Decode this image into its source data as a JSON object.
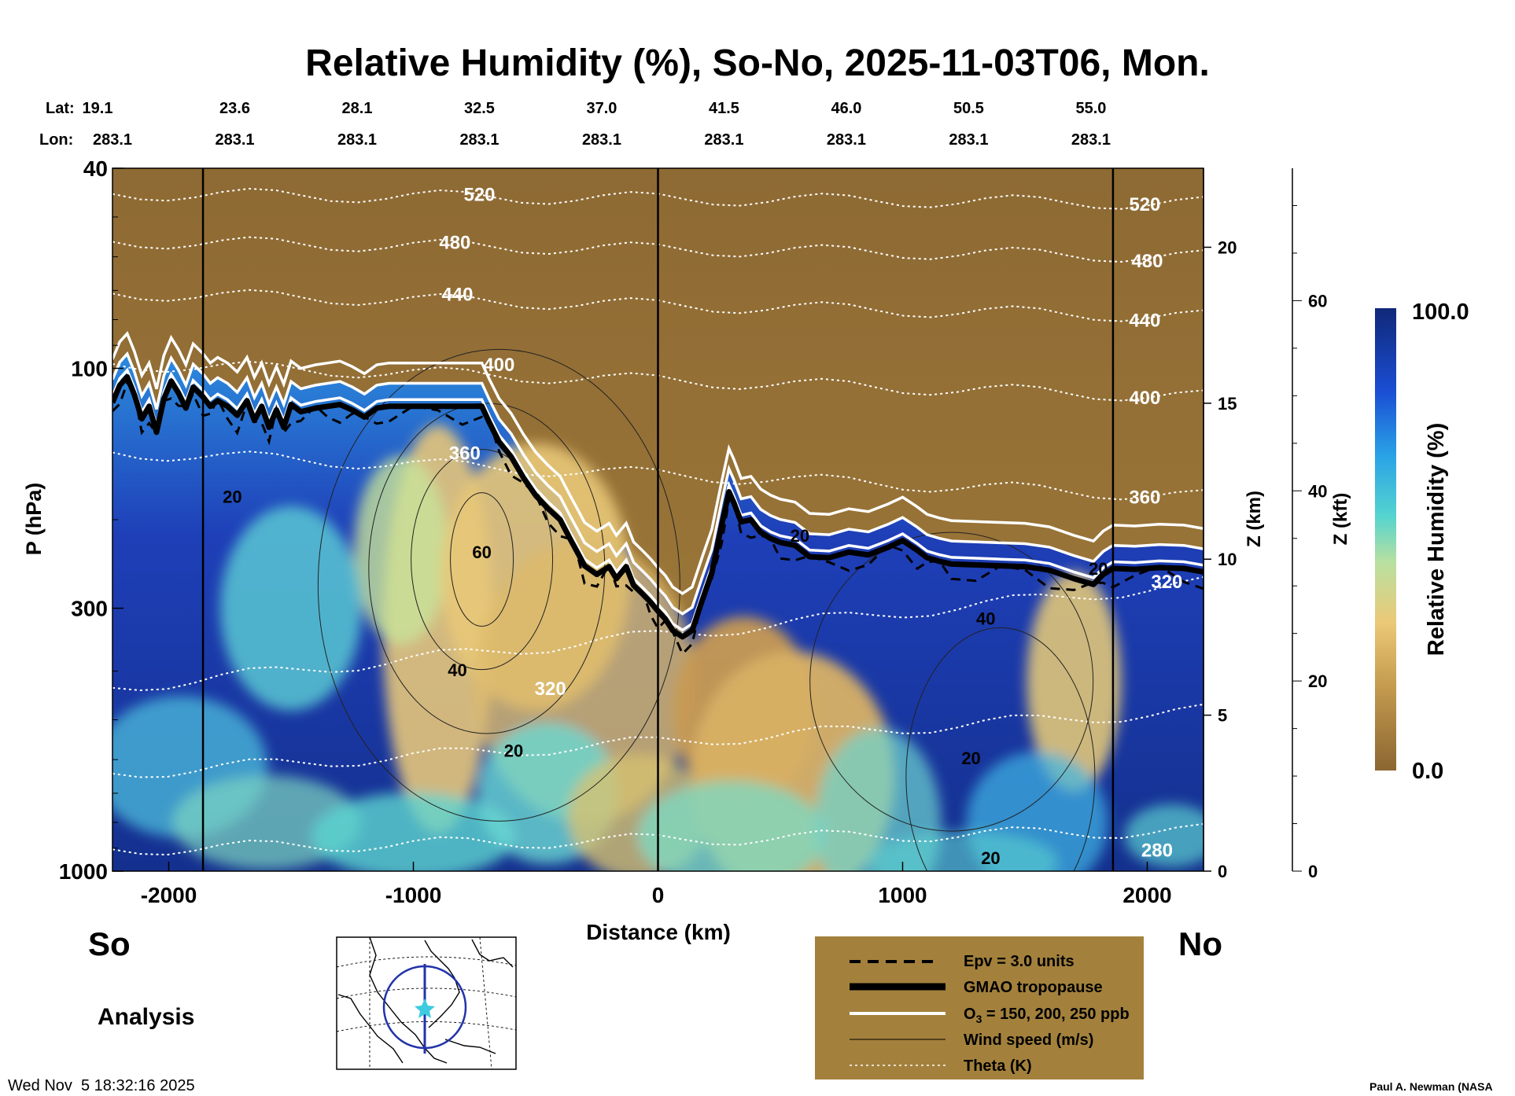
{
  "chart_data": {
    "type": "heatmap",
    "title": "Relative Humidity (%), So-No, 2025-11-03T06, Mon.",
    "xlabel": "Distance (km)",
    "ylabel": "P (hPa)",
    "z_km_label": "Z (km)",
    "z_kft_label": "Z (kft)",
    "colorbar_label": "Relative Humidity (%)",
    "colorbar_max_label": "100.0",
    "colorbar_min_label": "0.0",
    "xlim": [
      -2230,
      2230
    ],
    "ylim": [
      1000,
      40
    ],
    "y_scale": "log",
    "x_ticks": [
      {
        "value": -2000,
        "label": "-2000"
      },
      {
        "value": -1000,
        "label": "-1000"
      },
      {
        "value": 0,
        "label": "0"
      },
      {
        "value": 1000,
        "label": "1000"
      },
      {
        "value": 2000,
        "label": "2000"
      }
    ],
    "y_ticks": [
      {
        "value": 40,
        "label": "40"
      },
      {
        "value": 100,
        "label": "100"
      },
      {
        "value": 300,
        "label": "300"
      },
      {
        "value": 1000,
        "label": "1000"
      }
    ],
    "z_km_ticks": [
      {
        "value": 0,
        "label": "0"
      },
      {
        "value": 5,
        "label": "5"
      },
      {
        "value": 10,
        "label": "10"
      },
      {
        "value": 15,
        "label": "15"
      },
      {
        "value": 20,
        "label": "20"
      }
    ],
    "z_kft_ticks": [
      {
        "value": 0,
        "label": "0"
      },
      {
        "value": 20,
        "label": "20"
      },
      {
        "value": 40,
        "label": "40"
      },
      {
        "value": 60,
        "label": "60"
      }
    ],
    "lat_label": "Lat:",
    "lon_label": "Lon:",
    "position_labels": [
      {
        "distance": -2230,
        "lat": "19.1",
        "lon": "283.1"
      },
      {
        "distance": -1730,
        "lat": "23.6",
        "lon": "283.1"
      },
      {
        "distance": -1230,
        "lat": "28.1",
        "lon": "283.1"
      },
      {
        "distance": -730,
        "lat": "32.5",
        "lon": "283.1"
      },
      {
        "distance": -230,
        "lat": "37.0",
        "lon": "283.1"
      },
      {
        "distance": 270,
        "lat": "41.5",
        "lon": "283.1"
      },
      {
        "distance": 770,
        "lat": "46.0",
        "lon": "283.1"
      },
      {
        "distance": 1270,
        "lat": "50.5",
        "lon": "283.1"
      },
      {
        "distance": 1770,
        "lat": "55.0",
        "lon": "283.1"
      }
    ],
    "vertical_lines_km": [
      -1860,
      0,
      1860
    ],
    "theta_labels": [
      {
        "label": "520",
        "x": -730,
        "p": 45
      },
      {
        "label": "480",
        "x": -830,
        "p": 56
      },
      {
        "label": "440",
        "x": -820,
        "p": 71
      },
      {
        "label": "400",
        "x": -650,
        "p": 98
      },
      {
        "label": "360",
        "x": -790,
        "p": 147
      },
      {
        "label": "320",
        "x": -440,
        "p": 432
      },
      {
        "label": "520",
        "x": 1990,
        "p": 47
      },
      {
        "label": "480",
        "x": 2000,
        "p": 61
      },
      {
        "label": "440",
        "x": 1990,
        "p": 80
      },
      {
        "label": "400",
        "x": 1990,
        "p": 114
      },
      {
        "label": "360",
        "x": 1990,
        "p": 180
      },
      {
        "label": "320",
        "x": 2080,
        "p": 265
      },
      {
        "label": "280",
        "x": 2040,
        "p": 905
      }
    ],
    "wind_labels": [
      {
        "label": "20",
        "x": -1740,
        "p": 180
      },
      {
        "label": "60",
        "x": -720,
        "p": 232
      },
      {
        "label": "40",
        "x": -820,
        "p": 398
      },
      {
        "label": "20",
        "x": -590,
        "p": 575
      },
      {
        "label": "20",
        "x": 580,
        "p": 215
      },
      {
        "label": "40",
        "x": 1340,
        "p": 314
      },
      {
        "label": "20",
        "x": 1280,
        "p": 595
      },
      {
        "label": "20",
        "x": 1360,
        "p": 940
      },
      {
        "label": "20",
        "x": 1800,
        "p": 250
      }
    ],
    "tropopause": [
      [
        -2230,
        117
      ],
      [
        -2200,
        108
      ],
      [
        -2170,
        104
      ],
      [
        -2140,
        113
      ],
      [
        -2110,
        126
      ],
      [
        -2080,
        119
      ],
      [
        -2050,
        134
      ],
      [
        -2020,
        115
      ],
      [
        -1990,
        106
      ],
      [
        -1960,
        112
      ],
      [
        -1930,
        120
      ],
      [
        -1900,
        109
      ],
      [
        -1860,
        114
      ],
      [
        -1830,
        119
      ],
      [
        -1800,
        116
      ],
      [
        -1760,
        119
      ],
      [
        -1720,
        124
      ],
      [
        -1680,
        116
      ],
      [
        -1650,
        127
      ],
      [
        -1620,
        119
      ],
      [
        -1590,
        131
      ],
      [
        -1560,
        121
      ],
      [
        -1530,
        131
      ],
      [
        -1500,
        118
      ],
      [
        -1460,
        122
      ],
      [
        -1400,
        120
      ],
      [
        -1350,
        119
      ],
      [
        -1300,
        118
      ],
      [
        -1250,
        121
      ],
      [
        -1200,
        125
      ],
      [
        -1150,
        120
      ],
      [
        -1100,
        119
      ],
      [
        -1000,
        119
      ],
      [
        -900,
        119
      ],
      [
        -800,
        119
      ],
      [
        -720,
        119
      ],
      [
        -690,
        128
      ],
      [
        -650,
        140
      ],
      [
        -600,
        150
      ],
      [
        -550,
        165
      ],
      [
        -500,
        179
      ],
      [
        -450,
        190
      ],
      [
        -400,
        200
      ],
      [
        -360,
        218
      ],
      [
        -330,
        232
      ],
      [
        -300,
        247
      ],
      [
        -250,
        257
      ],
      [
        -200,
        248
      ],
      [
        -170,
        262
      ],
      [
        -130,
        248
      ],
      [
        -100,
        270
      ],
      [
        -60,
        282
      ],
      [
        -30,
        292
      ],
      [
        0,
        304
      ],
      [
        30,
        315
      ],
      [
        60,
        332
      ],
      [
        100,
        342
      ],
      [
        140,
        332
      ],
      [
        180,
        290
      ],
      [
        220,
        255
      ],
      [
        260,
        205
      ],
      [
        290,
        176
      ],
      [
        310,
        185
      ],
      [
        340,
        202
      ],
      [
        380,
        200
      ],
      [
        420,
        212
      ],
      [
        460,
        218
      ],
      [
        500,
        222
      ],
      [
        560,
        225
      ],
      [
        620,
        237
      ],
      [
        700,
        238
      ],
      [
        780,
        232
      ],
      [
        860,
        235
      ],
      [
        940,
        227
      ],
      [
        1000,
        220
      ],
      [
        1060,
        230
      ],
      [
        1100,
        238
      ],
      [
        1150,
        242
      ],
      [
        1200,
        245
      ],
      [
        1300,
        246
      ],
      [
        1400,
        247
      ],
      [
        1500,
        248
      ],
      [
        1600,
        252
      ],
      [
        1700,
        262
      ],
      [
        1780,
        269
      ],
      [
        1820,
        257
      ],
      [
        1860,
        250
      ],
      [
        1950,
        251
      ],
      [
        2050,
        249
      ],
      [
        2150,
        250
      ],
      [
        2230,
        254
      ]
    ],
    "legend": [
      {
        "style": "dashed",
        "label": "Epv = 3.0 units"
      },
      {
        "style": "thick",
        "label": "GMAO tropopause"
      },
      {
        "style": "white",
        "label_parts": [
          "O",
          "3",
          " = 150, 200, 250 ppb"
        ]
      },
      {
        "style": "thin",
        "label": "Wind speed (m/s)"
      },
      {
        "style": "dotted",
        "label": "Theta (K)"
      }
    ],
    "end_label_left": "So",
    "end_label_right": "No",
    "subtitle": "Analysis",
    "timestamp": "Wed Nov  5 18:32:16 2025",
    "credit": "Paul A. Newman (NASA",
    "colors": {
      "dry": "#8B6631",
      "moist": "#102878",
      "legend_bg": "#A3813C"
    }
  }
}
